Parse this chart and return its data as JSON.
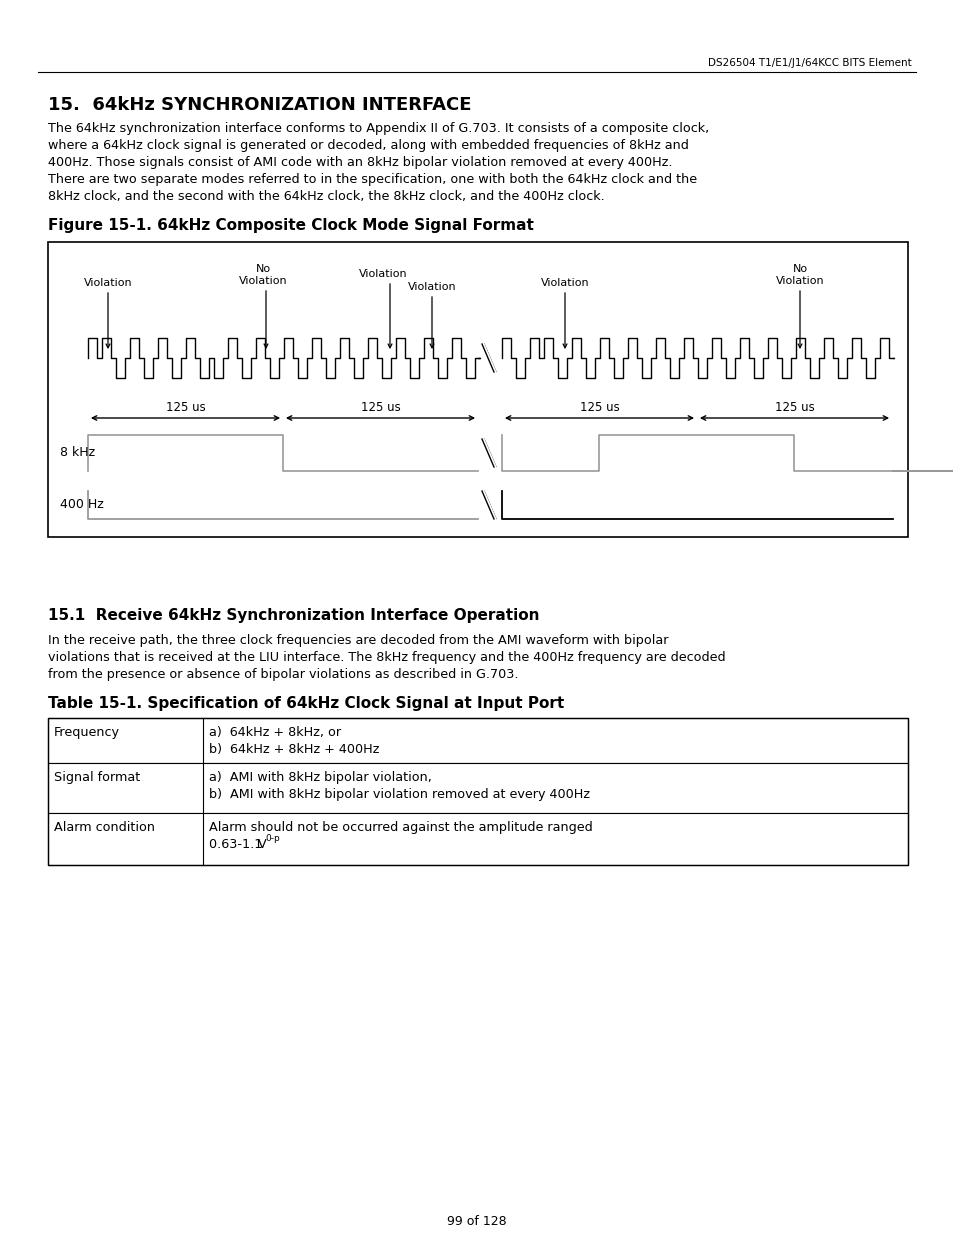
{
  "page_header": "DS26504 T1/E1/J1/64KCC BITS Element",
  "section_title": "15.  64kHz SYNCHRONIZATION INTERFACE",
  "body_lines": [
    "The 64kHz synchronization interface conforms to Appendix II of G.703. It consists of a composite clock,",
    "where a 64kHz clock signal is generated or decoded, along with embedded frequencies of 8kHz and",
    "400Hz. Those signals consist of AMI code with an 8kHz bipolar violation removed at every 400Hz.",
    "There are two separate modes referred to in the specification, one with both the 64kHz clock and the",
    "8kHz clock, and the second with the 64kHz clock, the 8kHz clock, and the 400Hz clock."
  ],
  "figure_title": "Figure 15-1. 64kHz Composite Clock Mode Signal Format",
  "subsection_title": "15.1  Receive 64kHz Synchronization Interface Operation",
  "sub_body_lines": [
    "In the receive path, the three clock frequencies are decoded from the AMI waveform with bipolar",
    "violations that is received at the LIU interface. The 8kHz frequency and the 400Hz frequency are decoded",
    "from the presence or absence of bipolar violations as described in G.703."
  ],
  "table_title": "Table 15-1. Specification of 64kHz Clock Signal at Input Port",
  "table_col1": [
    "Frequency",
    "Signal format",
    "Alarm condition"
  ],
  "table_col2_lines": [
    [
      "a)  64kHz + 8kHz, or",
      "b)  64kHz + 8kHz + 400Hz"
    ],
    [
      "a)  AMI with 8kHz bipolar violation,",
      "b)  AMI with 8kHz bipolar violation removed at every 400Hz"
    ],
    [
      "Alarm should not be occurred against the amplitude ranged",
      "0.63-1.1 V0-p"
    ]
  ],
  "footer": "99 of 128",
  "bg_color": "#ffffff",
  "text_color": "#000000"
}
